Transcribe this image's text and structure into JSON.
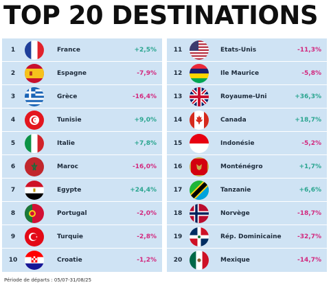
{
  "title": "TOP 20 DESTINATIONS",
  "footer": "Période de départs : 05/07-31/08/25",
  "colors": {
    "positive": "#2aa58f",
    "negative": "#d2287e",
    "panel": "#cfe3f4"
  },
  "left": [
    {
      "rank": "1",
      "country": "France",
      "change": "+2,5%",
      "flag": "france-flag"
    },
    {
      "rank": "2",
      "country": "Espagne",
      "change": "-7,9%",
      "flag": "spain-flag"
    },
    {
      "rank": "3",
      "country": "Grèce",
      "change": "-16,4%",
      "flag": "greece-flag"
    },
    {
      "rank": "4",
      "country": "Tunisie",
      "change": "+9,0%",
      "flag": "tunisia-flag"
    },
    {
      "rank": "5",
      "country": "Italie",
      "change": "+7,8%",
      "flag": "italy-flag"
    },
    {
      "rank": "6",
      "country": "Maroc",
      "change": "-16,0%",
      "flag": "morocco-flag"
    },
    {
      "rank": "7",
      "country": "Egypte",
      "change": "+24,4%",
      "flag": "egypt-flag"
    },
    {
      "rank": "8",
      "country": "Portugal",
      "change": "-2,0%",
      "flag": "portugal-flag"
    },
    {
      "rank": "9",
      "country": "Turquie",
      "change": "-2,8%",
      "flag": "turkey-flag"
    },
    {
      "rank": "10",
      "country": "Croatie",
      "change": "-1,2%",
      "flag": "croatia-flag"
    }
  ],
  "right": [
    {
      "rank": "11",
      "country": "Etats-Unis",
      "change": "-11,3%",
      "flag": "usa-flag"
    },
    {
      "rank": "12",
      "country": "Ile Maurice",
      "change": "-5,8%",
      "flag": "mauritius-flag"
    },
    {
      "rank": "13",
      "country": "Royaume-Uni",
      "change": "+36,3%",
      "flag": "uk-flag"
    },
    {
      "rank": "14",
      "country": "Canada",
      "change": "+18,7%",
      "flag": "canada-flag"
    },
    {
      "rank": "15",
      "country": "Indonésie",
      "change": "-5,2%",
      "flag": "indonesia-flag"
    },
    {
      "rank": "16",
      "country": "Monténégro",
      "change": "+1,7%",
      "flag": "montenegro-flag"
    },
    {
      "rank": "17",
      "country": "Tanzanie",
      "change": "+6,6%",
      "flag": "tanzania-flag"
    },
    {
      "rank": "18",
      "country": "Norvège",
      "change": "-18,7%",
      "flag": "norway-flag"
    },
    {
      "rank": "19",
      "country": "Rép. Dominicaine",
      "change": "-32,7%",
      "flag": "dominican-republic-flag"
    },
    {
      "rank": "20",
      "country": "Mexique",
      "change": "-14,7%",
      "flag": "mexico-flag"
    }
  ]
}
